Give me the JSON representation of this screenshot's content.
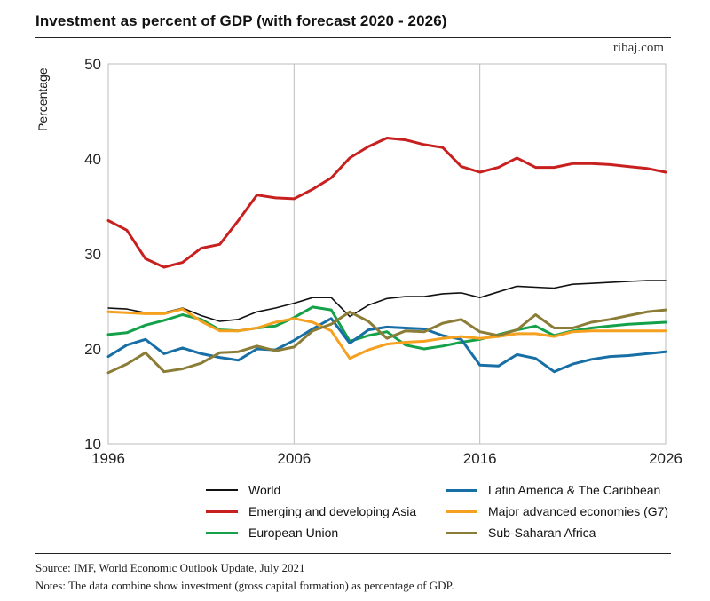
{
  "header": {
    "title": "Investment as percent of GDP (with forecast 2020 - 2026)",
    "brand": "ribaj.com"
  },
  "footer": {
    "source": "Source: IMF, World Economic Outlook Update, July 2021",
    "notes": "Notes: The data combine show investment (gross capital formation) as percentage of GDP."
  },
  "chart_data": {
    "type": "line",
    "title": "Investment as percent of GDP (with forecast 2020 - 2026)",
    "xlabel": "",
    "ylabel": "Percentage",
    "xlim": [
      1996,
      2026
    ],
    "ylim": [
      10,
      50
    ],
    "xticks": [
      1996,
      2006,
      2016,
      2026
    ],
    "yticks": [
      10,
      20,
      30,
      40,
      50
    ],
    "grid": "vertical lines at x ticks",
    "legend_position": "bottom",
    "x": [
      1996,
      1997,
      1998,
      1999,
      2000,
      2001,
      2002,
      2003,
      2004,
      2005,
      2006,
      2007,
      2008,
      2009,
      2010,
      2011,
      2012,
      2013,
      2014,
      2015,
      2016,
      2017,
      2018,
      2019,
      2020,
      2021,
      2022,
      2023,
      2024,
      2025,
      2026
    ],
    "series": [
      {
        "name": "World",
        "color": "#111111",
        "values": [
          24.3,
          24.2,
          23.8,
          23.8,
          24.3,
          23.5,
          22.9,
          23.1,
          23.9,
          24.3,
          24.8,
          25.4,
          25.4,
          23.4,
          24.6,
          25.3,
          25.5,
          25.5,
          25.8,
          25.9,
          25.4,
          26.0,
          26.6,
          26.5,
          26.4,
          26.8,
          26.9,
          27.0,
          27.1,
          27.2,
          27.2
        ]
      },
      {
        "name": "Emerging and developing Asia",
        "color": "#c8201f",
        "values": [
          33.5,
          32.5,
          29.5,
          28.6,
          29.1,
          30.6,
          31.0,
          33.5,
          36.2,
          35.9,
          35.8,
          36.8,
          38.0,
          40.1,
          41.3,
          42.2,
          42.0,
          41.5,
          41.2,
          39.2,
          38.6,
          39.1,
          40.1,
          39.1,
          39.1,
          39.5,
          39.5,
          39.4,
          39.2,
          39.0,
          38.6
        ]
      },
      {
        "name": "European Union",
        "color": "#14a14a",
        "values": [
          21.5,
          21.7,
          22.5,
          23.0,
          23.6,
          23.1,
          22.0,
          21.9,
          22.2,
          22.4,
          23.3,
          24.4,
          24.1,
          20.8,
          21.4,
          21.8,
          20.4,
          20.0,
          20.3,
          20.7,
          21.0,
          21.5,
          22.0,
          22.4,
          21.4,
          21.9,
          22.2,
          22.4,
          22.6,
          22.7,
          22.8
        ]
      },
      {
        "name": "Latin America & The Caribbean",
        "color": "#176fa6",
        "values": [
          19.2,
          20.4,
          21.0,
          19.5,
          20.1,
          19.5,
          19.1,
          18.8,
          20.0,
          19.9,
          20.9,
          22.1,
          23.2,
          20.6,
          22.0,
          22.3,
          22.2,
          22.1,
          21.4,
          21.0,
          18.3,
          18.2,
          19.4,
          19.0,
          17.6,
          18.4,
          18.9,
          19.2,
          19.3,
          19.5,
          19.7
        ]
      },
      {
        "name": "Major advanced economies (G7)",
        "color": "#f5a01e",
        "values": [
          23.9,
          23.8,
          23.7,
          23.7,
          24.2,
          22.9,
          21.9,
          21.9,
          22.2,
          22.8,
          23.2,
          22.8,
          21.9,
          19.0,
          19.9,
          20.5,
          20.7,
          20.8,
          21.1,
          21.3,
          21.1,
          21.3,
          21.6,
          21.6,
          21.3,
          21.8,
          21.9,
          21.9,
          21.9,
          21.9,
          21.9
        ]
      },
      {
        "name": "Sub-Saharan Africa",
        "color": "#8b7d37",
        "values": [
          17.5,
          18.4,
          19.6,
          17.6,
          17.9,
          18.5,
          19.6,
          19.7,
          20.3,
          19.8,
          20.2,
          21.9,
          22.6,
          23.9,
          22.9,
          21.1,
          21.9,
          21.8,
          22.7,
          23.1,
          21.8,
          21.4,
          22.0,
          23.6,
          22.2,
          22.2,
          22.8,
          23.1,
          23.5,
          23.9,
          24.1
        ]
      }
    ]
  }
}
